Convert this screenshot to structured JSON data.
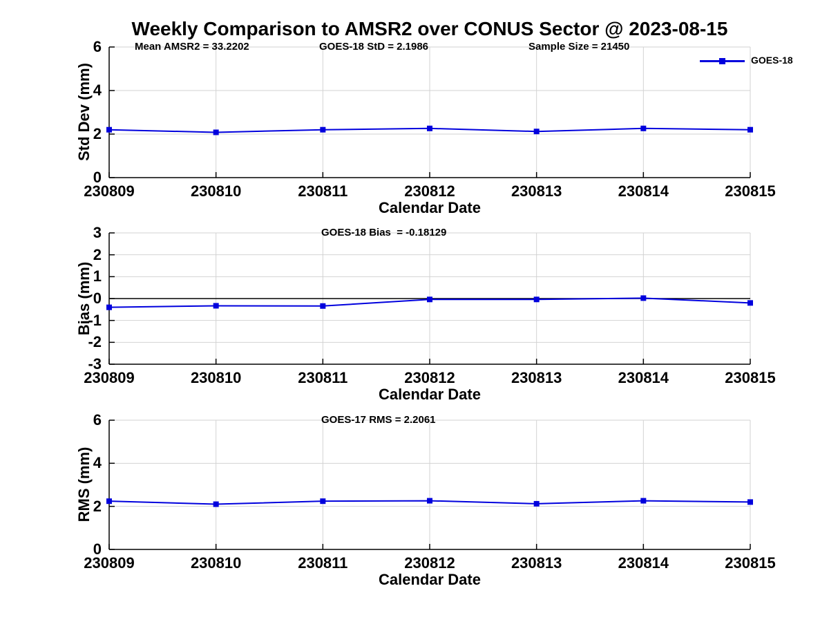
{
  "page": {
    "title": "Weekly Comparison to AMSR2 over CONUS Sector @ 2023-08-15",
    "background": "#ffffff"
  },
  "legend": {
    "label": "GOES-18"
  },
  "colors": {
    "series": "#0000dd",
    "grid": "#d2d2d2",
    "axis": "#000000",
    "zero_line": "#000000",
    "text": "#000000"
  },
  "chart_data": [
    {
      "type": "line",
      "ylabel": "Std Dev (mm)",
      "xlabel": "Calendar Date",
      "ylim": [
        0,
        6
      ],
      "yticks": [
        0,
        2,
        4,
        6
      ],
      "grid": true,
      "legend_position": "top-right-outside",
      "annotations": [
        {
          "text": "Mean AMSR2 = 33.2202"
        },
        {
          "text": "GOES-18 StD = 2.1986"
        },
        {
          "text": "Sample Size = 21450"
        }
      ],
      "categories": [
        "230809",
        "230810",
        "230811",
        "230812",
        "230813",
        "230814",
        "230815"
      ],
      "series": [
        {
          "name": "GOES-18",
          "values": [
            2.2,
            2.08,
            2.2,
            2.26,
            2.12,
            2.26,
            2.2
          ]
        }
      ]
    },
    {
      "type": "line",
      "ylabel": "Bias (mm)",
      "xlabel": "Calendar Date",
      "ylim": [
        -3,
        3
      ],
      "yticks": [
        3,
        2,
        1,
        0,
        -1,
        -2,
        -3
      ],
      "grid": true,
      "zero_line": true,
      "annotations": [
        {
          "text": "GOES-18 Bias  = -0.18129"
        }
      ],
      "categories": [
        "230809",
        "230810",
        "230811",
        "230812",
        "230813",
        "230814",
        "230815"
      ],
      "series": [
        {
          "name": "GOES-18",
          "values": [
            -0.4,
            -0.33,
            -0.34,
            -0.04,
            -0.04,
            0.02,
            -0.2
          ]
        }
      ]
    },
    {
      "type": "line",
      "ylabel": "RMS (mm)",
      "xlabel": "Calendar Date",
      "ylim": [
        0,
        6
      ],
      "yticks": [
        0,
        2,
        4,
        6
      ],
      "grid": true,
      "annotations": [
        {
          "text": "GOES-17 RMS = 2.2061"
        }
      ],
      "categories": [
        "230809",
        "230810",
        "230811",
        "230812",
        "230813",
        "230814",
        "230815"
      ],
      "series": [
        {
          "name": "GOES-18",
          "values": [
            2.24,
            2.1,
            2.24,
            2.26,
            2.12,
            2.26,
            2.2
          ]
        }
      ]
    }
  ]
}
